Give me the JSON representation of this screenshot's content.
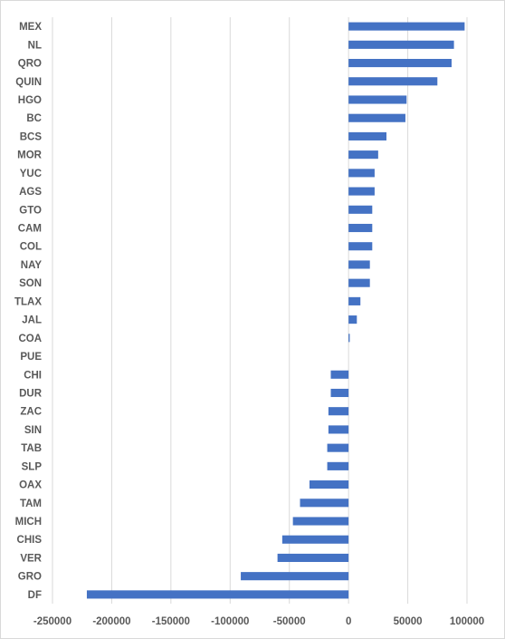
{
  "chart_data": {
    "type": "bar",
    "orientation": "horizontal",
    "title": "",
    "xlabel": "",
    "ylabel": "",
    "categories": [
      "MEX",
      "NL",
      "QRO",
      "QUIN",
      "HGO",
      "BC",
      "BCS",
      "MOR",
      "YUC",
      "AGS",
      "GTO",
      "CAM",
      "COL",
      "NAY",
      "SON",
      "TLAX",
      "JAL",
      "COA",
      "PUE",
      "CHI",
      "DUR",
      "ZAC",
      "SIN",
      "TAB",
      "SLP",
      "OAX",
      "TAM",
      "MICH",
      "CHIS",
      "VER",
      "GRO",
      "DF"
    ],
    "values": [
      98000,
      89000,
      87000,
      75000,
      49000,
      48000,
      32000,
      25000,
      22000,
      22000,
      20000,
      20000,
      20000,
      18000,
      18000,
      10000,
      7000,
      1000,
      0,
      -15000,
      -15000,
      -17000,
      -17000,
      -18000,
      -18000,
      -33000,
      -41000,
      -47000,
      -56000,
      -60000,
      -91000,
      -221000
    ],
    "xlim": [
      -250000,
      100000
    ],
    "xticks": [
      -250000,
      -200000,
      -150000,
      -100000,
      -50000,
      0,
      50000,
      100000
    ],
    "xtick_labels": [
      "-250000",
      "-200000",
      "-150000",
      "-100000",
      "-50000",
      "0",
      "50000",
      "100000"
    ],
    "grid": true,
    "legend": "none",
    "bar_color": "#4472c4",
    "grid_color": "#d9d9d9"
  }
}
